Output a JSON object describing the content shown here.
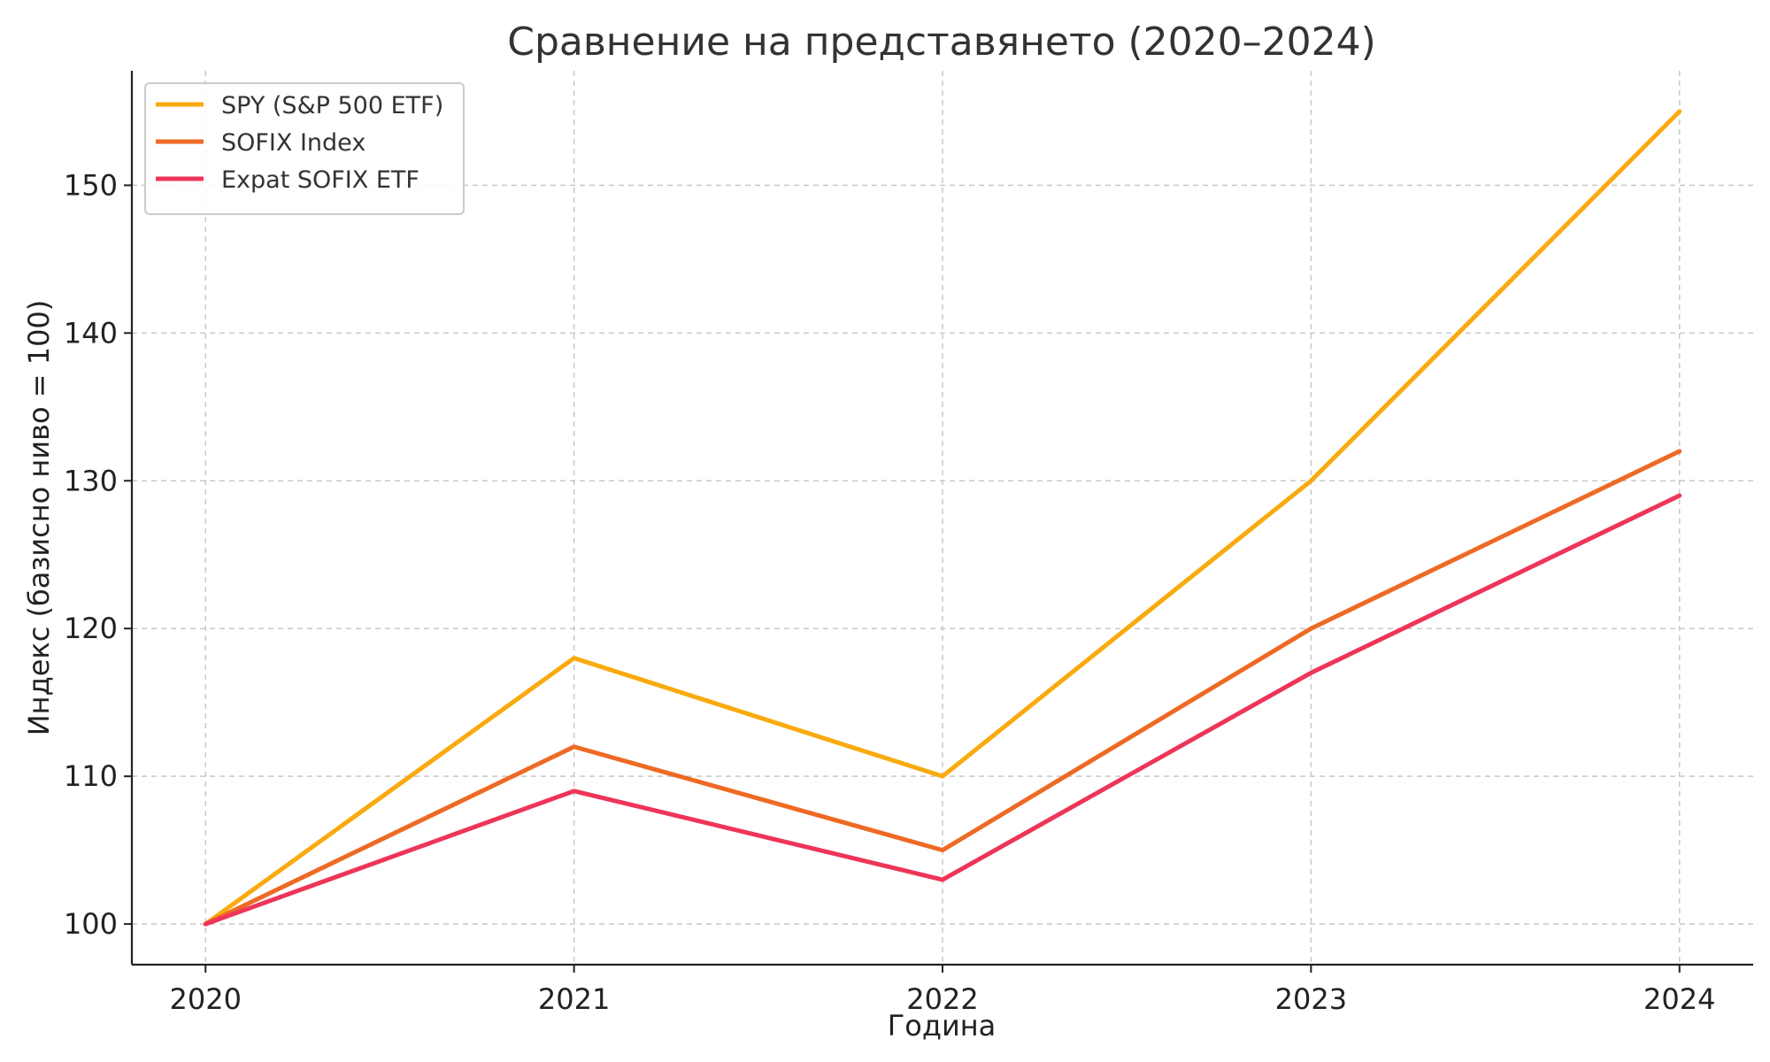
{
  "chart_data": {
    "type": "line",
    "title": "Сравнение на представянето (2020–2024)",
    "xlabel": "Година",
    "ylabel": "Индекс (базисно ниво = 100)",
    "x": [
      2020,
      2021,
      2022,
      2023,
      2024
    ],
    "x_tick_labels": [
      "2020",
      "2021",
      "2022",
      "2023",
      "2024"
    ],
    "y_ticks": [
      100,
      110,
      120,
      130,
      140,
      150
    ],
    "y_tick_labels": [
      "100",
      "110",
      "120",
      "130",
      "140",
      "150"
    ],
    "xlim": [
      2019.8,
      2024.2
    ],
    "ylim": [
      97.25,
      157.75
    ],
    "grid": true,
    "legend_position": "top-left",
    "series": [
      {
        "name": "SPY (S&P 500 ETF)",
        "color": "#F9AA0E",
        "values": [
          100,
          118,
          110,
          130,
          155
        ]
      },
      {
        "name": "SOFIX Index",
        "color": "#EE6A24",
        "values": [
          100,
          112,
          105,
          120,
          132
        ]
      },
      {
        "name": "Expat SOFIX ETF",
        "color": "#EE3559",
        "values": [
          100,
          109,
          103,
          117,
          129
        ]
      }
    ]
  }
}
